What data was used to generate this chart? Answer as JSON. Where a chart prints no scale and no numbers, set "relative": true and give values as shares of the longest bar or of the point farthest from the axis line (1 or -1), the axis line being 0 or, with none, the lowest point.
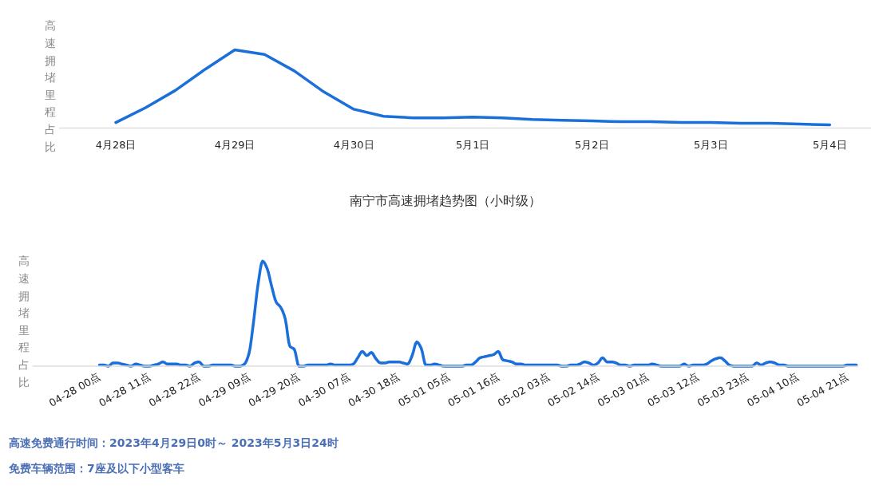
{
  "chart_data": [
    {
      "type": "line",
      "relative": true,
      "ylabel": "高速拥堵里程占比",
      "color": "#1a6fdb",
      "categories": [
        "4月28日",
        null,
        null,
        null,
        "4月29日",
        null,
        null,
        null,
        "4月30日",
        null,
        null,
        null,
        "5月1日",
        null,
        null,
        null,
        "5月2日",
        null,
        null,
        null,
        "5月3日",
        null,
        null,
        null,
        "5月4日"
      ],
      "values": [
        0.07,
        0.26,
        0.48,
        0.75,
        1.0,
        0.94,
        0.73,
        0.46,
        0.24,
        0.15,
        0.13,
        0.13,
        0.14,
        0.13,
        0.11,
        0.1,
        0.09,
        0.08,
        0.08,
        0.07,
        0.07,
        0.06,
        0.06,
        0.05,
        0.04
      ]
    },
    {
      "type": "line",
      "relative": true,
      "title": "南宁市高速拥堵趋势图（小时级）",
      "ylabel": "高速拥堵里程占比",
      "color": "#1a6fdb",
      "categories": [
        "04-28 00点",
        null,
        null,
        null,
        null,
        null,
        null,
        null,
        null,
        null,
        null,
        "04-28 11点",
        null,
        null,
        null,
        null,
        null,
        null,
        null,
        null,
        null,
        null,
        "04-28 22点",
        null,
        null,
        null,
        null,
        null,
        null,
        null,
        null,
        null,
        null,
        "04-29 09点",
        null,
        null,
        null,
        null,
        null,
        null,
        null,
        null,
        null,
        null,
        "04-29 20点",
        null,
        null,
        null,
        null,
        null,
        null,
        null,
        null,
        null,
        null,
        "04-30 07点",
        null,
        null,
        null,
        null,
        null,
        null,
        null,
        null,
        null,
        null,
        "04-30 18点",
        null,
        null,
        null,
        null,
        null,
        null,
        null,
        null,
        null,
        null,
        "05-01 05点",
        null,
        null,
        null,
        null,
        null,
        null,
        null,
        null,
        null,
        null,
        "05-01 16点",
        null,
        null,
        null,
        null,
        null,
        null,
        null,
        null,
        null,
        null,
        "05-02 03点",
        null,
        null,
        null,
        null,
        null,
        null,
        null,
        null,
        null,
        null,
        "05-02 14点",
        null,
        null,
        null,
        null,
        null,
        null,
        null,
        null,
        null,
        null,
        "05-03 01点",
        null,
        null,
        null,
        null,
        null,
        null,
        null,
        null,
        null,
        null,
        "05-03 12点",
        null,
        null,
        null,
        null,
        null,
        null,
        null,
        null,
        null,
        null,
        "05-03 23点",
        null,
        null,
        null,
        null,
        null,
        null,
        null,
        null,
        null,
        null,
        "05-04 10点",
        null,
        null,
        null,
        null,
        null,
        null,
        null,
        null,
        null,
        null,
        "05-04 21点",
        null,
        null
      ],
      "values": [
        0.01,
        0.01,
        0.0,
        0.03,
        0.03,
        0.02,
        0.01,
        0.0,
        0.02,
        0.01,
        0.0,
        0.0,
        0.01,
        0.02,
        0.04,
        0.02,
        0.02,
        0.02,
        0.01,
        0.01,
        0.0,
        0.03,
        0.04,
        0.0,
        0.0,
        0.01,
        0.01,
        0.01,
        0.01,
        0.01,
        0.0,
        0.0,
        0.02,
        0.12,
        0.42,
        0.78,
        1.0,
        0.93,
        0.76,
        0.61,
        0.56,
        0.45,
        0.19,
        0.16,
        0.0,
        0.0,
        0.01,
        0.01,
        0.01,
        0.01,
        0.01,
        0.02,
        0.01,
        0.01,
        0.01,
        0.01,
        0.02,
        0.08,
        0.14,
        0.1,
        0.13,
        0.07,
        0.03,
        0.03,
        0.04,
        0.04,
        0.04,
        0.03,
        0.02,
        0.1,
        0.23,
        0.17,
        0.01,
        0.01,
        0.02,
        0.01,
        0.0,
        0.0,
        0.0,
        0.0,
        0.0,
        0.01,
        0.01,
        0.04,
        0.08,
        0.09,
        0.1,
        0.11,
        0.14,
        0.06,
        0.05,
        0.04,
        0.02,
        0.02,
        0.01,
        0.01,
        0.01,
        0.01,
        0.01,
        0.01,
        0.01,
        0.01,
        0.0,
        0.0,
        0.01,
        0.01,
        0.02,
        0.04,
        0.03,
        0.01,
        0.03,
        0.08,
        0.04,
        0.04,
        0.03,
        0.01,
        0.01,
        0.0,
        0.01,
        0.01,
        0.01,
        0.01,
        0.02,
        0.01,
        0.0,
        0.0,
        0.0,
        0.0,
        0.0,
        0.02,
        0.0,
        0.01,
        0.01,
        0.01,
        0.02,
        0.05,
        0.07,
        0.08,
        0.05,
        0.01,
        0.0,
        0.0,
        0.0,
        0.0,
        0.0,
        0.03,
        0.01,
        0.03,
        0.04,
        0.03,
        0.01,
        0.01,
        0.0,
        0.0,
        0.0,
        0.0,
        0.0,
        0.0,
        0.0,
        0.0,
        0.0,
        0.0,
        0.0,
        0.0,
        0.0,
        0.01,
        0.01,
        0.01
      ],
      "annotations": [
        "高速免费通行时间：2023年4月29日0时～ 2023年5月3日24时",
        "免费车辆范围：7座及以下小型客车"
      ]
    }
  ]
}
